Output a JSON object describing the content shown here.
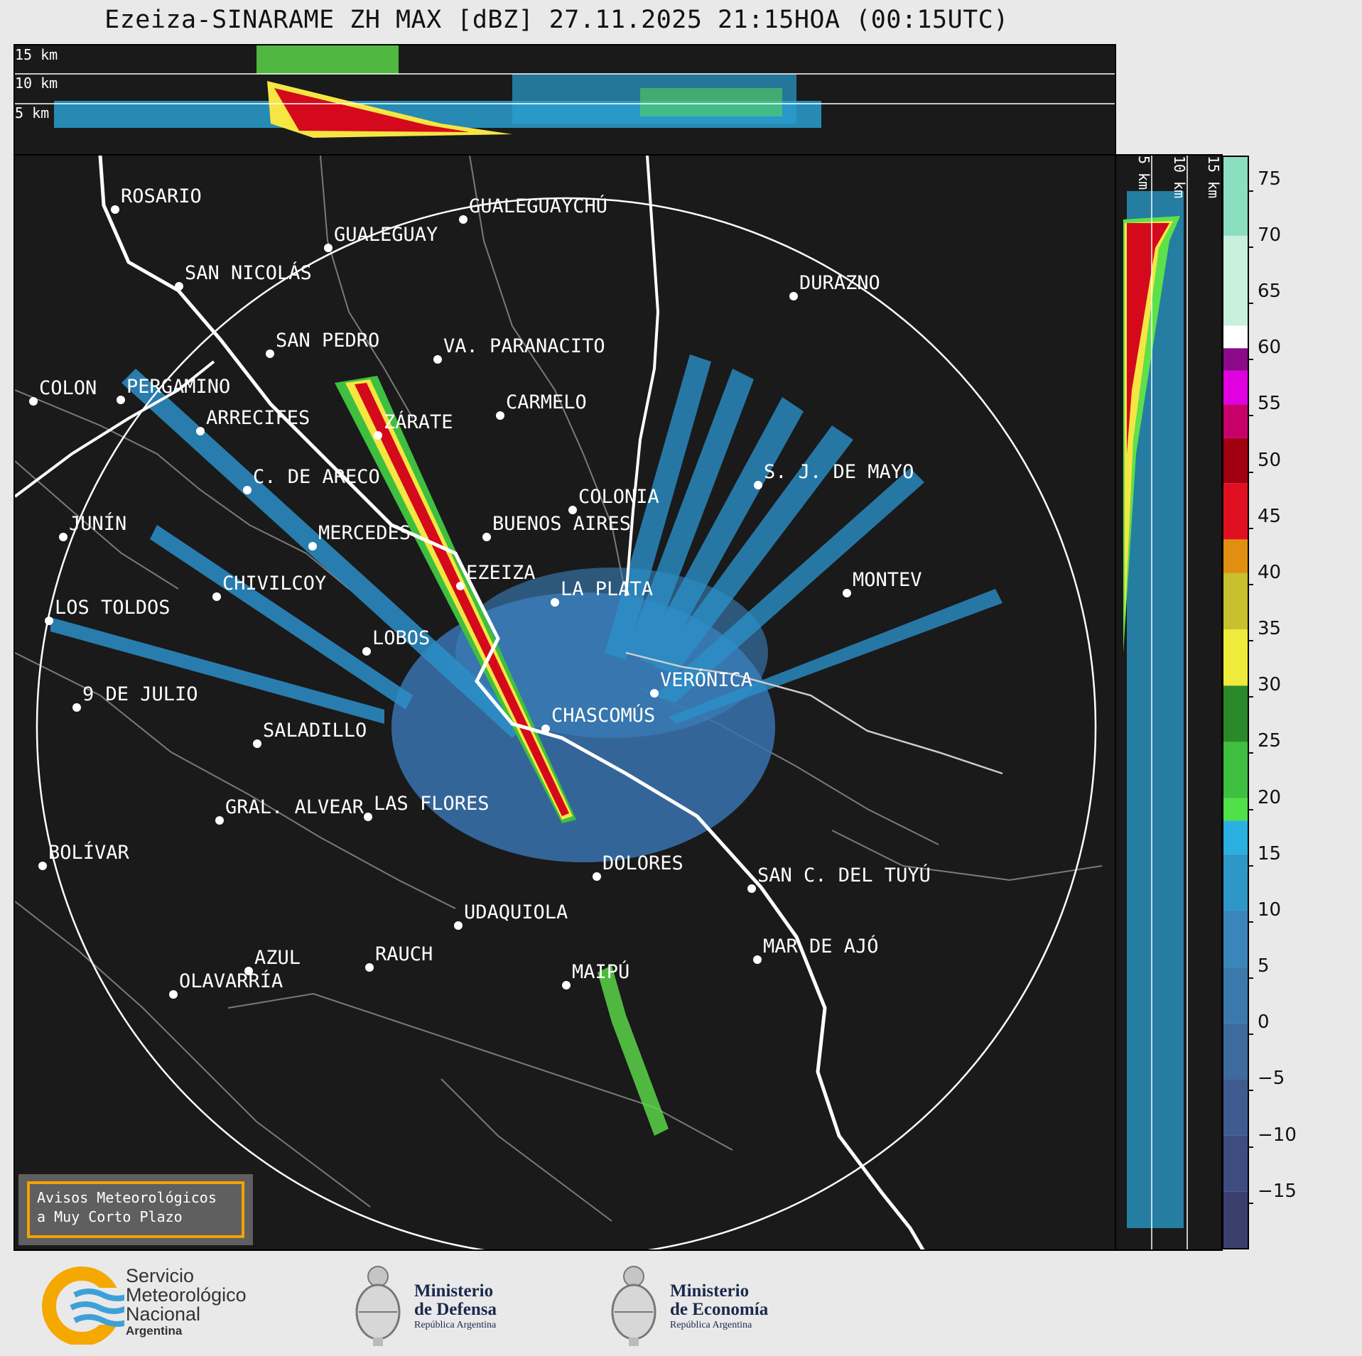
{
  "title": "Ezeiza-SINARAME ZH MAX [dBZ] 27.11.2025 21:15HOA (00:15UTC)",
  "top_panel": {
    "height_labels": [
      "15 km",
      "10 km",
      "5 km"
    ]
  },
  "side_panel": {
    "height_labels": [
      "5 km",
      "10 km",
      "15 km"
    ]
  },
  "colorbar": {
    "ticks": [
      "75",
      "70",
      "65",
      "60",
      "55",
      "50",
      "45",
      "40",
      "35",
      "30",
      "25",
      "20",
      "15",
      "10",
      "5",
      "0",
      "−5",
      "−10",
      "−15"
    ],
    "range": [
      -20,
      77
    ]
  },
  "cities": [
    {
      "name": "ROSARIO"
    },
    {
      "name": "GUALEGUAYCHÚ"
    },
    {
      "name": "GUALEGUAY"
    },
    {
      "name": "SAN NICOLÁS"
    },
    {
      "name": "DURAZNO"
    },
    {
      "name": "SAN PEDRO"
    },
    {
      "name": "VA. PARANACITO"
    },
    {
      "name": "COLON"
    },
    {
      "name": "PERGAMINO"
    },
    {
      "name": "CARMELO"
    },
    {
      "name": "ARRECIFES"
    },
    {
      "name": "ZÁRATE"
    },
    {
      "name": "S. J. DE MAYO"
    },
    {
      "name": "C. DE ARECO"
    },
    {
      "name": "COLONIA"
    },
    {
      "name": "JUNÍN"
    },
    {
      "name": "BUENOS AIRES"
    },
    {
      "name": "MERCEDES"
    },
    {
      "name": "EZEIZA"
    },
    {
      "name": "MONTEV"
    },
    {
      "name": "CHIVILCOY"
    },
    {
      "name": "LA PLATA"
    },
    {
      "name": "LOS TOLDOS"
    },
    {
      "name": "LOBOS"
    },
    {
      "name": "VERÓNICA"
    },
    {
      "name": "9 DE JULIO"
    },
    {
      "name": "CHASCOMÚS"
    },
    {
      "name": "SALADILLO"
    },
    {
      "name": "GRAL. ALVEAR"
    },
    {
      "name": "LAS FLORES"
    },
    {
      "name": "BOLÍVAR"
    },
    {
      "name": "DOLORES"
    },
    {
      "name": "SAN C. DEL TUYÚ"
    },
    {
      "name": "UDAQUIOLA"
    },
    {
      "name": "MAR DE AJÓ"
    },
    {
      "name": "AZUL"
    },
    {
      "name": "RAUCH"
    },
    {
      "name": "OLAVARRÍA"
    },
    {
      "name": "MAIPÚ"
    }
  ],
  "warning": {
    "line1": "Avisos Meteorológicos",
    "line2": "a Muy Corto Plazo"
  },
  "logos": {
    "smn": {
      "line1": "Servicio",
      "line2": "Meteorológico",
      "line3": "Nacional",
      "line4": "Argentina"
    },
    "defensa": {
      "line1": "Ministerio",
      "line2": "de Defensa",
      "line3": "República Argentina"
    },
    "economia": {
      "line1": "Ministerio",
      "line2": "de Economía",
      "line3": "República Argentina"
    }
  },
  "colors": {
    "background": "#1a1a1a",
    "accent_warning": "#f4a200",
    "city_dot": "#ffffff"
  }
}
